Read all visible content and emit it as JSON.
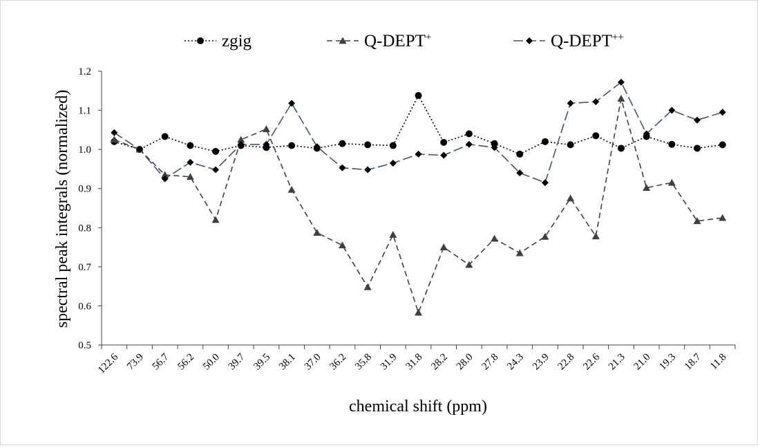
{
  "chart_data": {
    "type": "line",
    "xlabel": "chemical shift (ppm)",
    "ylabel": "spectral peak integrals (normalized)",
    "ylim": [
      0.5,
      1.2
    ],
    "yticks": [
      "0.5",
      "0.6",
      "0.7",
      "0.8",
      "0.9",
      "1.0",
      "1.1",
      "1.2"
    ],
    "grid": false,
    "legend_position": "top",
    "categories": [
      "122.6",
      "73.9",
      "56.7",
      "56.2",
      "50.0",
      "39.7",
      "39.5",
      "38.1",
      "37.0",
      "36.2",
      "35.8",
      "31.9",
      "31.8",
      "28.2",
      "28.0",
      "27.8",
      "24.3",
      "23.9",
      "22.8",
      "22.6",
      "21.3",
      "21.0",
      "19.3",
      "18.7",
      "11.8"
    ],
    "series": [
      {
        "name": "zgig",
        "legend_base": "zgig",
        "legend_sup": "",
        "color": "#000000",
        "dash": "2,3",
        "marker": "circle",
        "values": [
          1.02,
          1.0,
          1.033,
          1.01,
          0.995,
          1.01,
          1.005,
          1.01,
          1.003,
          1.015,
          1.012,
          1.01,
          1.138,
          1.018,
          1.04,
          1.015,
          0.988,
          1.02,
          1.012,
          1.035,
          1.003,
          1.033,
          1.013,
          1.003,
          1.012
        ]
      },
      {
        "name": "Q-DEPT+",
        "legend_base": "Q-DEPT",
        "legend_sup": "+",
        "color": "#404040",
        "dash": "8,5",
        "marker": "triangle",
        "values": [
          1.025,
          1.0,
          0.935,
          0.93,
          0.82,
          1.025,
          1.052,
          0.897,
          0.787,
          0.755,
          0.648,
          0.782,
          0.583,
          0.75,
          0.705,
          0.772,
          0.735,
          0.777,
          0.875,
          0.778,
          1.13,
          0.902,
          0.915,
          0.817,
          0.825
        ]
      },
      {
        "name": "Q-DEPT++",
        "legend_base": "Q-DEPT",
        "legend_sup": "++",
        "color": "#44546a",
        "dash": "14,5",
        "marker": "diamond",
        "values": [
          1.043,
          1.0,
          0.925,
          0.967,
          0.948,
          1.013,
          1.013,
          1.118,
          1.007,
          0.953,
          0.948,
          0.965,
          0.988,
          0.985,
          1.013,
          1.005,
          0.94,
          0.915,
          1.118,
          1.122,
          1.172,
          1.04,
          1.1,
          1.075,
          1.095
        ]
      }
    ]
  }
}
